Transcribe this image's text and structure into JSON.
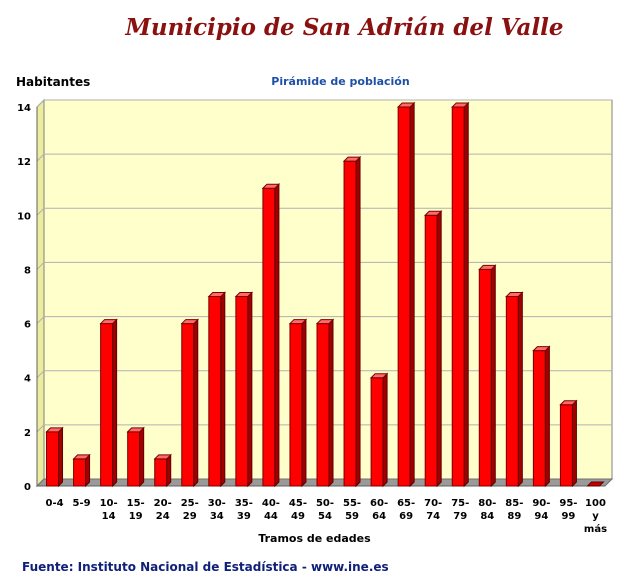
{
  "header": {
    "title": "Municipio de San Adrián del Valle",
    "source": "Fuente: Instituto Nacional de Estadística - www.ine.es"
  },
  "colors": {
    "title": "#8B1010",
    "subtitle": "#1f4fa8",
    "plot_background": "#ffffcc",
    "bar": "#ff0000",
    "source": "#10207a"
  },
  "chart_data": {
    "type": "bar",
    "title": "Pirámide de población",
    "xlabel": "Tramos de edades",
    "ylabel": "Habitantes",
    "ylim": [
      0,
      14
    ],
    "yticks": [
      0,
      2,
      4,
      6,
      8,
      10,
      12,
      14
    ],
    "grid": true,
    "categories": [
      [
        "0-4"
      ],
      [
        "5-9"
      ],
      [
        "10-",
        "14"
      ],
      [
        "15-",
        "19"
      ],
      [
        "20-",
        "24"
      ],
      [
        "25-",
        "29"
      ],
      [
        "30-",
        "34"
      ],
      [
        "35-",
        "39"
      ],
      [
        "40-",
        "44"
      ],
      [
        "45-",
        "49"
      ],
      [
        "50-",
        "54"
      ],
      [
        "55-",
        "59"
      ],
      [
        "60-",
        "64"
      ],
      [
        "65-",
        "69"
      ],
      [
        "70-",
        "74"
      ],
      [
        "75-",
        "79"
      ],
      [
        "80-",
        "84"
      ],
      [
        "85-",
        "89"
      ],
      [
        "90-",
        "94"
      ],
      [
        "95-",
        "99"
      ],
      [
        "100",
        "y",
        "más"
      ]
    ],
    "values": [
      2,
      1,
      6,
      2,
      1,
      6,
      7,
      7,
      11,
      6,
      6,
      12,
      4,
      14,
      10,
      14,
      8,
      7,
      5,
      3,
      0
    ]
  }
}
